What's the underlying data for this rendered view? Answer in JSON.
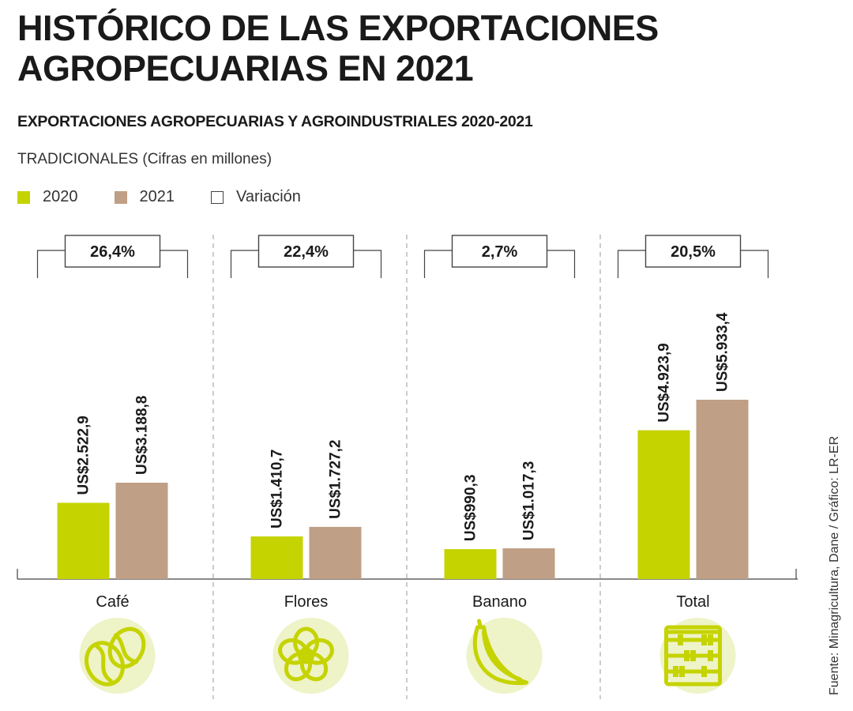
{
  "header": {
    "title": "HISTÓRICO DE LAS EXPORTACIONES AGROPECUARIAS EN 2021",
    "subtitle": "EXPORTACIONES AGROPECUARIAS Y AGROINDUSTRIALES 2020-2021",
    "note": "TRADICIONALES (Cifras en millones)"
  },
  "legend": [
    {
      "label": "2020",
      "color": "#c5d300"
    },
    {
      "label": "2021",
      "color": "#bf9f85"
    },
    {
      "label": "Variación",
      "color": "#ffffff"
    }
  ],
  "source": "Fuente: Minagricultura, Dane / Gráfico: LR-ER",
  "colors": {
    "y2020": "#c5d300",
    "y2021": "#bf9f85",
    "icon": "#c5d300",
    "icon_bg": "#eef3c8"
  },
  "chart_data": {
    "type": "bar",
    "categories": [
      "Café",
      "Flores",
      "Banano",
      "Total"
    ],
    "series": [
      {
        "name": "2020",
        "values": [
          2522.9,
          1410.7,
          990.3,
          4923.9
        ],
        "labels": [
          "US$2.522,9",
          "US$1.410,7",
          "US$990,3",
          "US$4.923,9"
        ]
      },
      {
        "name": "2021",
        "values": [
          3188.8,
          1727.2,
          1017.3,
          5933.4
        ],
        "labels": [
          "US$3.188,8",
          "US$1.727,2",
          "US$1.017,3",
          "US$5.933,4"
        ]
      }
    ],
    "variation": [
      "26,4%",
      "22,4%",
      "2,7%",
      "20,5%"
    ],
    "icons": [
      "coffee-bean-icon",
      "flower-icon",
      "banana-icon",
      "abacus-icon"
    ],
    "unit": "millones de US$",
    "ylim": [
      0,
      6000
    ]
  }
}
